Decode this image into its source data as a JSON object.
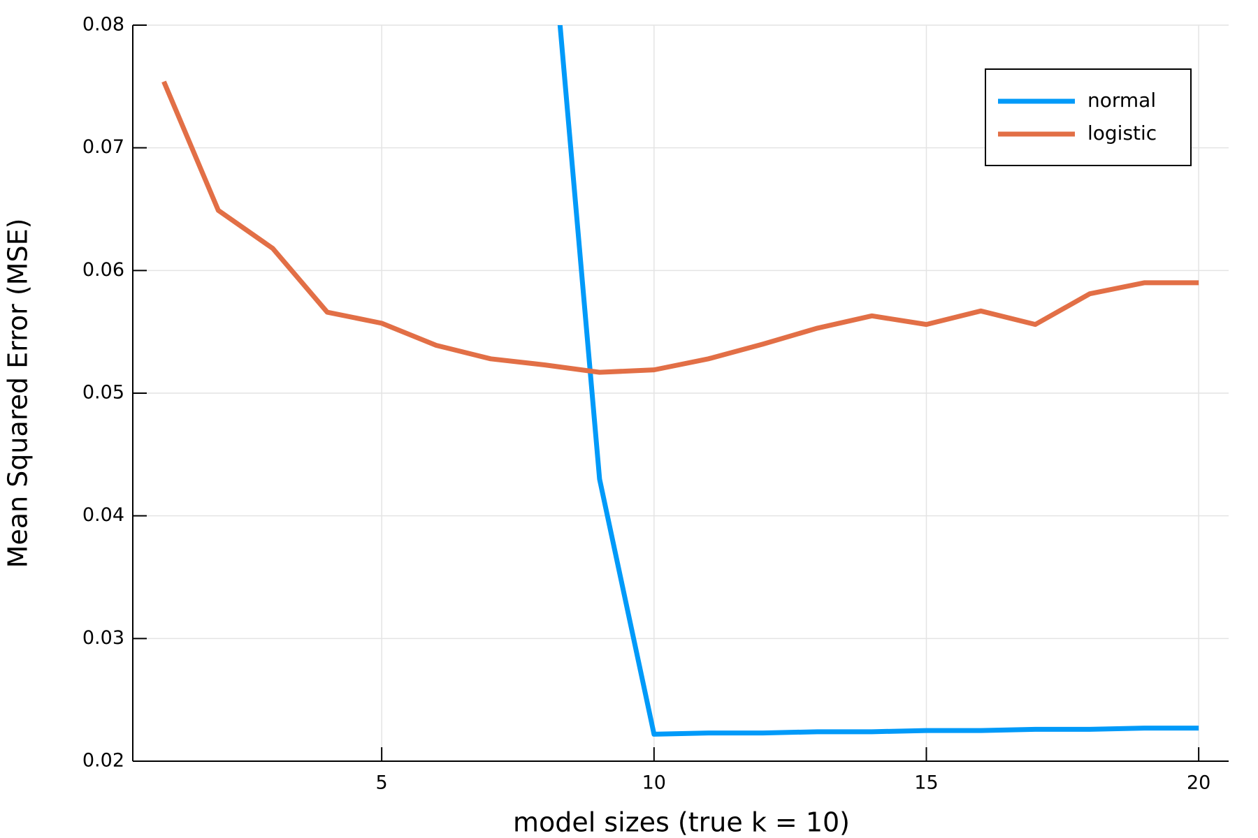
{
  "chart_data": {
    "type": "line",
    "x_label": "model sizes (true k = 10)",
    "y_label": "Mean Squared Error (MSE)",
    "x": [
      1,
      2,
      3,
      4,
      5,
      6,
      7,
      8,
      9,
      10,
      11,
      12,
      13,
      14,
      15,
      16,
      17,
      18,
      19,
      20
    ],
    "series": [
      {
        "name": "normal",
        "color": "#009af9",
        "values": [
          null,
          null,
          null,
          null,
          null,
          null,
          null,
          0.094,
          0.043,
          0.0222,
          0.0223,
          0.0223,
          0.0224,
          0.0224,
          0.0225,
          0.0225,
          0.0226,
          0.0226,
          0.0227,
          0.0227
        ]
      },
      {
        "name": "logistic",
        "color": "#e26f46",
        "values": [
          0.0754,
          0.0649,
          0.0618,
          0.0566,
          0.0557,
          0.0539,
          0.0528,
          0.0523,
          0.0517,
          0.0519,
          0.0528,
          0.054,
          0.0553,
          0.0563,
          0.0556,
          0.0567,
          0.0556,
          0.0581,
          0.059,
          0.059
        ]
      }
    ],
    "xlim": [
      0.43,
      20.55
    ],
    "xticks": [
      5,
      10,
      15,
      20
    ],
    "ylim": [
      0.02,
      0.08
    ],
    "yticks": [
      0.02,
      0.03,
      0.04,
      0.05,
      0.06,
      0.07,
      0.08
    ],
    "grid": true,
    "legend": "top-right"
  }
}
